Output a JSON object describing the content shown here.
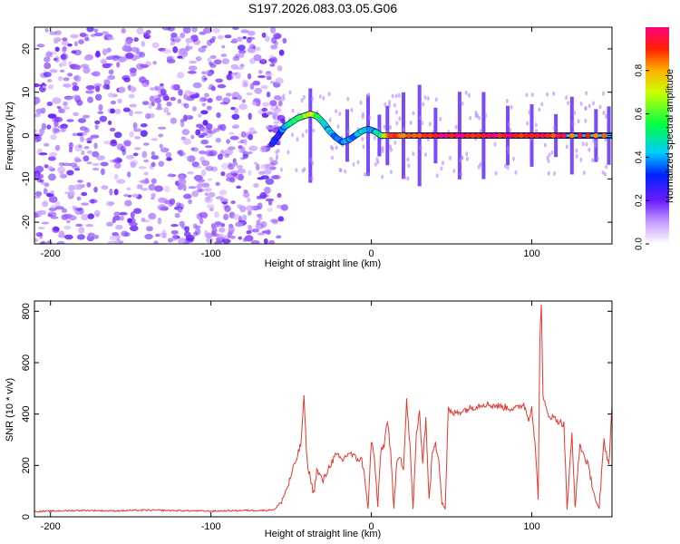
{
  "title": "S197.2026.083.03.05.G06",
  "chart_data": [
    {
      "type": "heatmap",
      "xlabel": "Height of straight line (km)",
      "ylabel": "Frequency (Hz)",
      "xlim": [
        -210,
        150
      ],
      "ylim": [
        -25,
        25
      ],
      "xticks": [
        -200,
        -100,
        0,
        100
      ],
      "yticks": [
        20,
        10,
        0,
        -10,
        -20
      ],
      "colorbar": {
        "label": "Normalized spectral amplitude",
        "range": [
          0,
          1
        ],
        "ticks": [
          "0.0",
          "0.2",
          "0.4",
          "0.6",
          "0.8"
        ],
        "tick_values": [
          0.0,
          0.2,
          0.4,
          0.6,
          0.8
        ]
      },
      "noise_region": {
        "x_from": -210,
        "x_to": -60,
        "amplitude": 0.15
      },
      "signal_track": {
        "x": [
          -62,
          -58,
          -54,
          -50,
          -46,
          -42,
          -38,
          -34,
          -30,
          -26,
          -22,
          -18,
          -14,
          -10,
          -6,
          -2,
          2,
          6,
          10,
          20,
          40,
          60,
          80,
          100,
          120,
          150
        ],
        "freq": [
          -2,
          0,
          2,
          3,
          4,
          4.5,
          5,
          4.5,
          3,
          1,
          -0.5,
          -1.5,
          -1,
          0,
          1,
          1.5,
          1,
          0,
          0,
          0,
          0,
          0,
          0,
          0,
          0,
          0
        ],
        "amp": [
          0.25,
          0.3,
          0.4,
          0.5,
          0.55,
          0.6,
          0.7,
          0.6,
          0.45,
          0.4,
          0.4,
          0.4,
          0.35,
          0.4,
          0.45,
          0.4,
          0.4,
          0.5,
          0.8,
          0.9,
          0.95,
          0.95,
          0.95,
          0.95,
          0.9,
          0.9
        ]
      },
      "spikes_x": [
        -38,
        -15,
        -2,
        5,
        10,
        20,
        30,
        40,
        55,
        70,
        85,
        100,
        115,
        125,
        140,
        148
      ]
    },
    {
      "type": "line",
      "xlabel": "Height of straight line (km)",
      "ylabel": "SNR (10 * v/v)",
      "xlim": [
        -210,
        150
      ],
      "ylim": [
        0,
        840
      ],
      "xticks": [
        -200,
        -100,
        0,
        100
      ],
      "yticks": [
        0,
        200,
        400,
        600,
        800
      ],
      "color": "#e8372f",
      "series": [
        {
          "name": "SNR",
          "x": [
            -210,
            -200,
            -180,
            -160,
            -140,
            -120,
            -100,
            -80,
            -65,
            -60,
            -56,
            -52,
            -48,
            -44,
            -42,
            -40,
            -38,
            -36,
            -34,
            -30,
            -26,
            -22,
            -18,
            -14,
            -10,
            -6,
            -4,
            -2,
            0,
            2,
            4,
            6,
            8,
            10,
            12,
            14,
            16,
            18,
            20,
            22,
            24,
            26,
            28,
            30,
            32,
            34,
            36,
            38,
            40,
            42,
            44,
            46,
            48,
            50,
            60,
            70,
            80,
            90,
            95,
            98,
            100,
            102,
            104,
            105,
            106,
            107,
            108,
            110,
            115,
            120,
            122,
            125,
            127,
            130,
            135,
            140,
            142,
            145,
            148,
            150
          ],
          "y": [
            20,
            22,
            25,
            23,
            26,
            24,
            22,
            25,
            25,
            30,
            60,
            120,
            200,
            280,
            460,
            210,
            150,
            90,
            180,
            140,
            200,
            240,
            220,
            250,
            230,
            220,
            150,
            30,
            300,
            220,
            40,
            260,
            280,
            380,
            250,
            30,
            230,
            240,
            180,
            450,
            280,
            30,
            320,
            400,
            220,
            380,
            60,
            250,
            280,
            230,
            60,
            30,
            420,
            400,
            420,
            440,
            430,
            420,
            440,
            380,
            430,
            280,
            80,
            680,
            840,
            460,
            440,
            400,
            380,
            360,
            30,
            320,
            40,
            280,
            200,
            60,
            30,
            300,
            200,
            430
          ]
        }
      ]
    }
  ]
}
